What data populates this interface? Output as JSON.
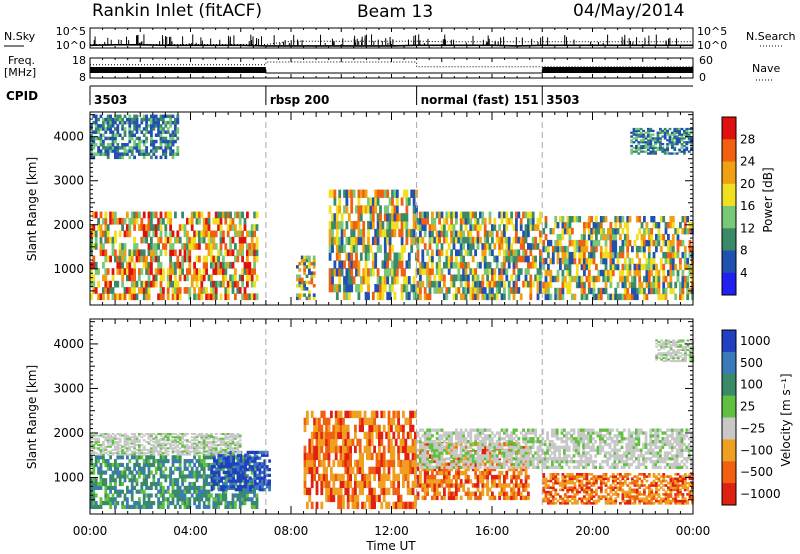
{
  "header": {
    "station": "Rankin Inlet (fitACF)",
    "beam": "Beam 13",
    "date": "04/May/2014"
  },
  "chart_data": [
    {
      "type": "line",
      "panel": "noise",
      "left_label": "N.Sky",
      "right_label": "N.Search",
      "y_tick_labels": [
        "10^5",
        "10^0"
      ],
      "series": [
        {
          "name": "N.Sky",
          "style": "solid",
          "x": [
            "00:00",
            "01:00",
            "02:00",
            "03:00",
            "04:00",
            "05:00",
            "06:00",
            "07:00",
            "08:00",
            "09:00",
            "10:00",
            "11:00",
            "12:00",
            "13:00",
            "14:00",
            "15:00",
            "16:00",
            "17:00",
            "18:00",
            "19:00",
            "20:00",
            "21:00",
            "22:00",
            "23:00",
            "24:00"
          ],
          "values": [
            3,
            4,
            4,
            3,
            3,
            3,
            3,
            2,
            2,
            2,
            2,
            2,
            2,
            3,
            3,
            3,
            3,
            2,
            3,
            3,
            3,
            3,
            3,
            3,
            3
          ]
        },
        {
          "name": "N.Search",
          "style": "dotted",
          "x": [
            "00:00",
            "02:00",
            "04:00",
            "06:00",
            "07:00",
            "08:00",
            "10:00",
            "12:00",
            "13:00",
            "14:00",
            "16:00",
            "18:00",
            "20:00",
            "22:00",
            "24:00"
          ],
          "values": [
            5,
            5,
            5,
            5,
            5,
            40,
            40,
            40,
            40,
            30,
            30,
            30,
            30,
            30,
            30
          ]
        }
      ]
    },
    {
      "type": "line",
      "panel": "frequency",
      "left_label_line1": "Freq.",
      "left_label_line2": "[MHz]",
      "right_label": "Nave",
      "y_left_tick_labels": [
        "18",
        "8"
      ],
      "y_right_tick_labels": [
        "60",
        "0"
      ],
      "series": [
        {
          "name": "Freq.",
          "style": "solid",
          "unit": "MHz",
          "x": [
            "00:00",
            "07:00",
            "07:00",
            "18:00",
            "18:00",
            "24:00"
          ],
          "values": [
            12,
            12,
            10.5,
            10.5,
            12,
            12
          ]
        },
        {
          "name": "Nave",
          "style": "dotted",
          "x": [
            "00:00",
            "07:00",
            "07:00",
            "13:00",
            "13:00",
            "24:00"
          ],
          "values": [
            40,
            40,
            48,
            48,
            34,
            34
          ]
        }
      ]
    },
    {
      "type": "table",
      "panel": "cpid",
      "label": "CPID",
      "segments": [
        {
          "start": "00:00",
          "end": "07:00",
          "label": "3503"
        },
        {
          "start": "07:00",
          "end": "13:00",
          "label": "rbsp 200"
        },
        {
          "start": "13:00",
          "end": "18:00",
          "label": "normal (fast) 151"
        },
        {
          "start": "18:00",
          "end": "24:00",
          "label": "3503"
        }
      ]
    },
    {
      "type": "heatmap",
      "panel": "power",
      "ylabel": "Slant Range [km]",
      "xlabel": "",
      "xlim": [
        "00:00",
        "24:00"
      ],
      "ylim": [
        180,
        4560
      ],
      "y_ticks": [
        1000,
        2000,
        3000,
        4000
      ],
      "colorbar": {
        "label": "Power [dB]",
        "ticks": [
          "4",
          "8",
          "12",
          "16",
          "20",
          "24",
          "28"
        ],
        "colors": [
          "#2020f0",
          "#2050b0",
          "#3a8a6a",
          "#78c878",
          "#f0e020",
          "#f0a010",
          "#f06010",
          "#e01010"
        ]
      },
      "echo_regions": [
        {
          "start_h": 0.0,
          "end_h": 6.7,
          "r_min": 300,
          "r_max": 2300,
          "level": "high",
          "peak_dB": 28
        },
        {
          "start_h": 0.0,
          "end_h": 3.5,
          "r_min": 3500,
          "r_max": 4500,
          "level": "low",
          "peak_dB": 8
        },
        {
          "start_h": 8.2,
          "end_h": 9.0,
          "r_min": 300,
          "r_max": 1300,
          "level": "medium",
          "peak_dB": 24
        },
        {
          "start_h": 9.5,
          "end_h": 13.0,
          "r_min": 300,
          "r_max": 2800,
          "level": "medium",
          "peak_dB": 24
        },
        {
          "start_h": 13.0,
          "end_h": 18.0,
          "r_min": 300,
          "r_max": 2300,
          "level": "medium",
          "peak_dB": 28
        },
        {
          "start_h": 18.0,
          "end_h": 24.0,
          "r_min": 300,
          "r_max": 2200,
          "level": "medium",
          "peak_dB": 28
        },
        {
          "start_h": 21.5,
          "end_h": 24.0,
          "r_min": 3600,
          "r_max": 4200,
          "level": "low",
          "peak_dB": 8
        }
      ]
    },
    {
      "type": "heatmap",
      "panel": "velocity",
      "ylabel": "Slant Range [km]",
      "xlabel": "Time UT",
      "xlim": [
        "00:00",
        "24:00"
      ],
      "ylim": [
        180,
        4560
      ],
      "x_tick_labels": [
        "00:00",
        "04:00",
        "08:00",
        "12:00",
        "16:00",
        "20:00",
        "00:00"
      ],
      "y_ticks": [
        1000,
        2000,
        3000,
        4000
      ],
      "colorbar": {
        "label": "Velocity [m s⁻¹]",
        "ticks": [
          "1000",
          "500",
          "100",
          "25",
          "−25",
          "−100",
          "−500",
          "−1000"
        ],
        "colors": [
          "#2040c0",
          "#3a7ab8",
          "#3a8a6a",
          "#60c040",
          "#c8c8c8",
          "#f0a020",
          "#f06010",
          "#e02010"
        ]
      },
      "echo_regions": [
        {
          "start_h": 0.0,
          "end_h": 6.7,
          "r_min": 300,
          "r_max": 1500,
          "velocity_ms": 200
        },
        {
          "start_h": 4.8,
          "end_h": 7.2,
          "r_min": 700,
          "r_max": 1600,
          "velocity_ms": 800
        },
        {
          "start_h": 0.0,
          "end_h": 6.0,
          "r_min": 1500,
          "r_max": 2000,
          "velocity_ms": 0
        },
        {
          "start_h": 8.5,
          "end_h": 13.0,
          "r_min": 300,
          "r_max": 2500,
          "velocity_ms": -300
        },
        {
          "start_h": 13.0,
          "end_h": 17.5,
          "r_min": 500,
          "r_max": 1800,
          "velocity_ms": -300
        },
        {
          "start_h": 13.0,
          "end_h": 24.0,
          "r_min": 1200,
          "r_max": 2100,
          "velocity_ms": 0
        },
        {
          "start_h": 18.0,
          "end_h": 24.0,
          "r_min": 400,
          "r_max": 1100,
          "velocity_ms": -300
        },
        {
          "start_h": 22.5,
          "end_h": 24.0,
          "r_min": 3600,
          "r_max": 4100,
          "velocity_ms": 0
        }
      ]
    }
  ]
}
